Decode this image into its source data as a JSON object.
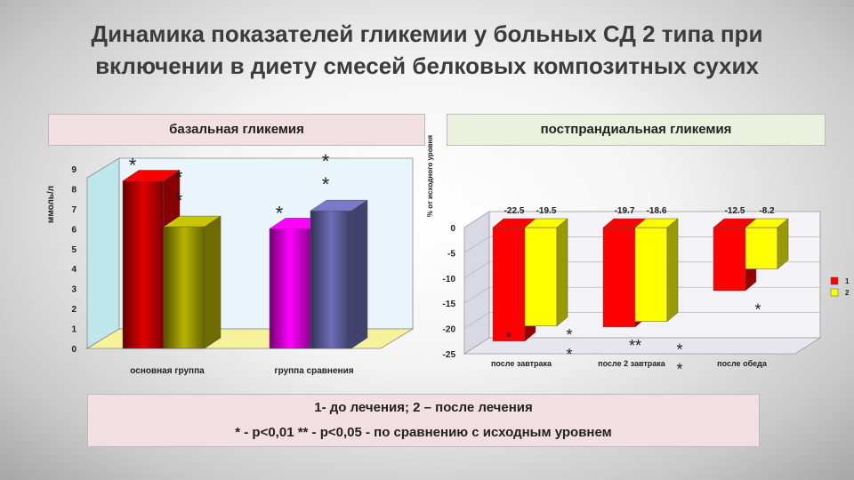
{
  "title": {
    "line1": "Динамика показателей гликемии у больных СД 2 типа при",
    "line2": "включении в диету смесей белковых композитных сухих"
  },
  "notes": {
    "line1": "1- до лечения; 2 – после лечения",
    "line2": "* - р<0,01 ** - р<0,05 - по сравнению с исходным уровнем"
  },
  "chart_data": [
    {
      "type": "bar",
      "title": "базальная гликемия",
      "ylabel": "ммоль/л",
      "xlabel": "",
      "ylim": [
        0,
        9
      ],
      "yticks": [
        "0",
        "1",
        "2",
        "3",
        "4",
        "5",
        "6",
        "7",
        "8",
        "9"
      ],
      "categories": [
        "основная группа",
        "группа сравнения"
      ],
      "series": [
        {
          "values": [
            8.4,
            6.0
          ],
          "colors": [
            "#e00000",
            "#ff00ff"
          ]
        },
        {
          "values": [
            6.1,
            6.9
          ],
          "colors": [
            "#b8b400",
            "#6e6eb8"
          ]
        }
      ],
      "markers": [
        {
          "category": 0,
          "series": 0,
          "text": "*"
        },
        {
          "category": 0,
          "series": 1,
          "text": "*"
        },
        {
          "category": 0,
          "series": 1,
          "text": "*"
        },
        {
          "category": 1,
          "series": 0,
          "text": "*"
        },
        {
          "category": 1,
          "series": 1,
          "text": "*"
        },
        {
          "category": 1,
          "series": 1,
          "text": "*"
        }
      ]
    },
    {
      "type": "bar",
      "title": "постпрандиальная гликемия",
      "ylabel": "% от исходного уровня",
      "xlabel": "",
      "ylim": [
        -25,
        0
      ],
      "yticks": [
        "0",
        "-5",
        "-10",
        "-15",
        "-20",
        "-25"
      ],
      "categories": [
        "после завтрака",
        "после 2 завтрака",
        "после обеда"
      ],
      "series": [
        {
          "name": "1",
          "color": "#ff0000",
          "values": [
            -22.5,
            -19.7,
            -12.5
          ],
          "labels": [
            "-22.5",
            "-19.7",
            "-12.5"
          ]
        },
        {
          "name": "2",
          "color": "#ffff00",
          "values": [
            -19.5,
            -18.6,
            -8.2
          ],
          "labels": [
            "-19.5",
            "-18.6",
            "-8.2"
          ]
        }
      ],
      "markers": [
        {
          "category": 0,
          "series": 0,
          "text": "*"
        },
        {
          "category": 0,
          "series": 1,
          "text": "*"
        },
        {
          "category": 0,
          "series": 1,
          "text": "*"
        },
        {
          "category": 1,
          "series": 1,
          "text": "**"
        },
        {
          "category": 1,
          "series": 1,
          "text": "*"
        },
        {
          "category": 1,
          "series": 1,
          "text": "*"
        },
        {
          "category": 2,
          "series": 1,
          "text": "*"
        }
      ],
      "legend": "right"
    }
  ]
}
